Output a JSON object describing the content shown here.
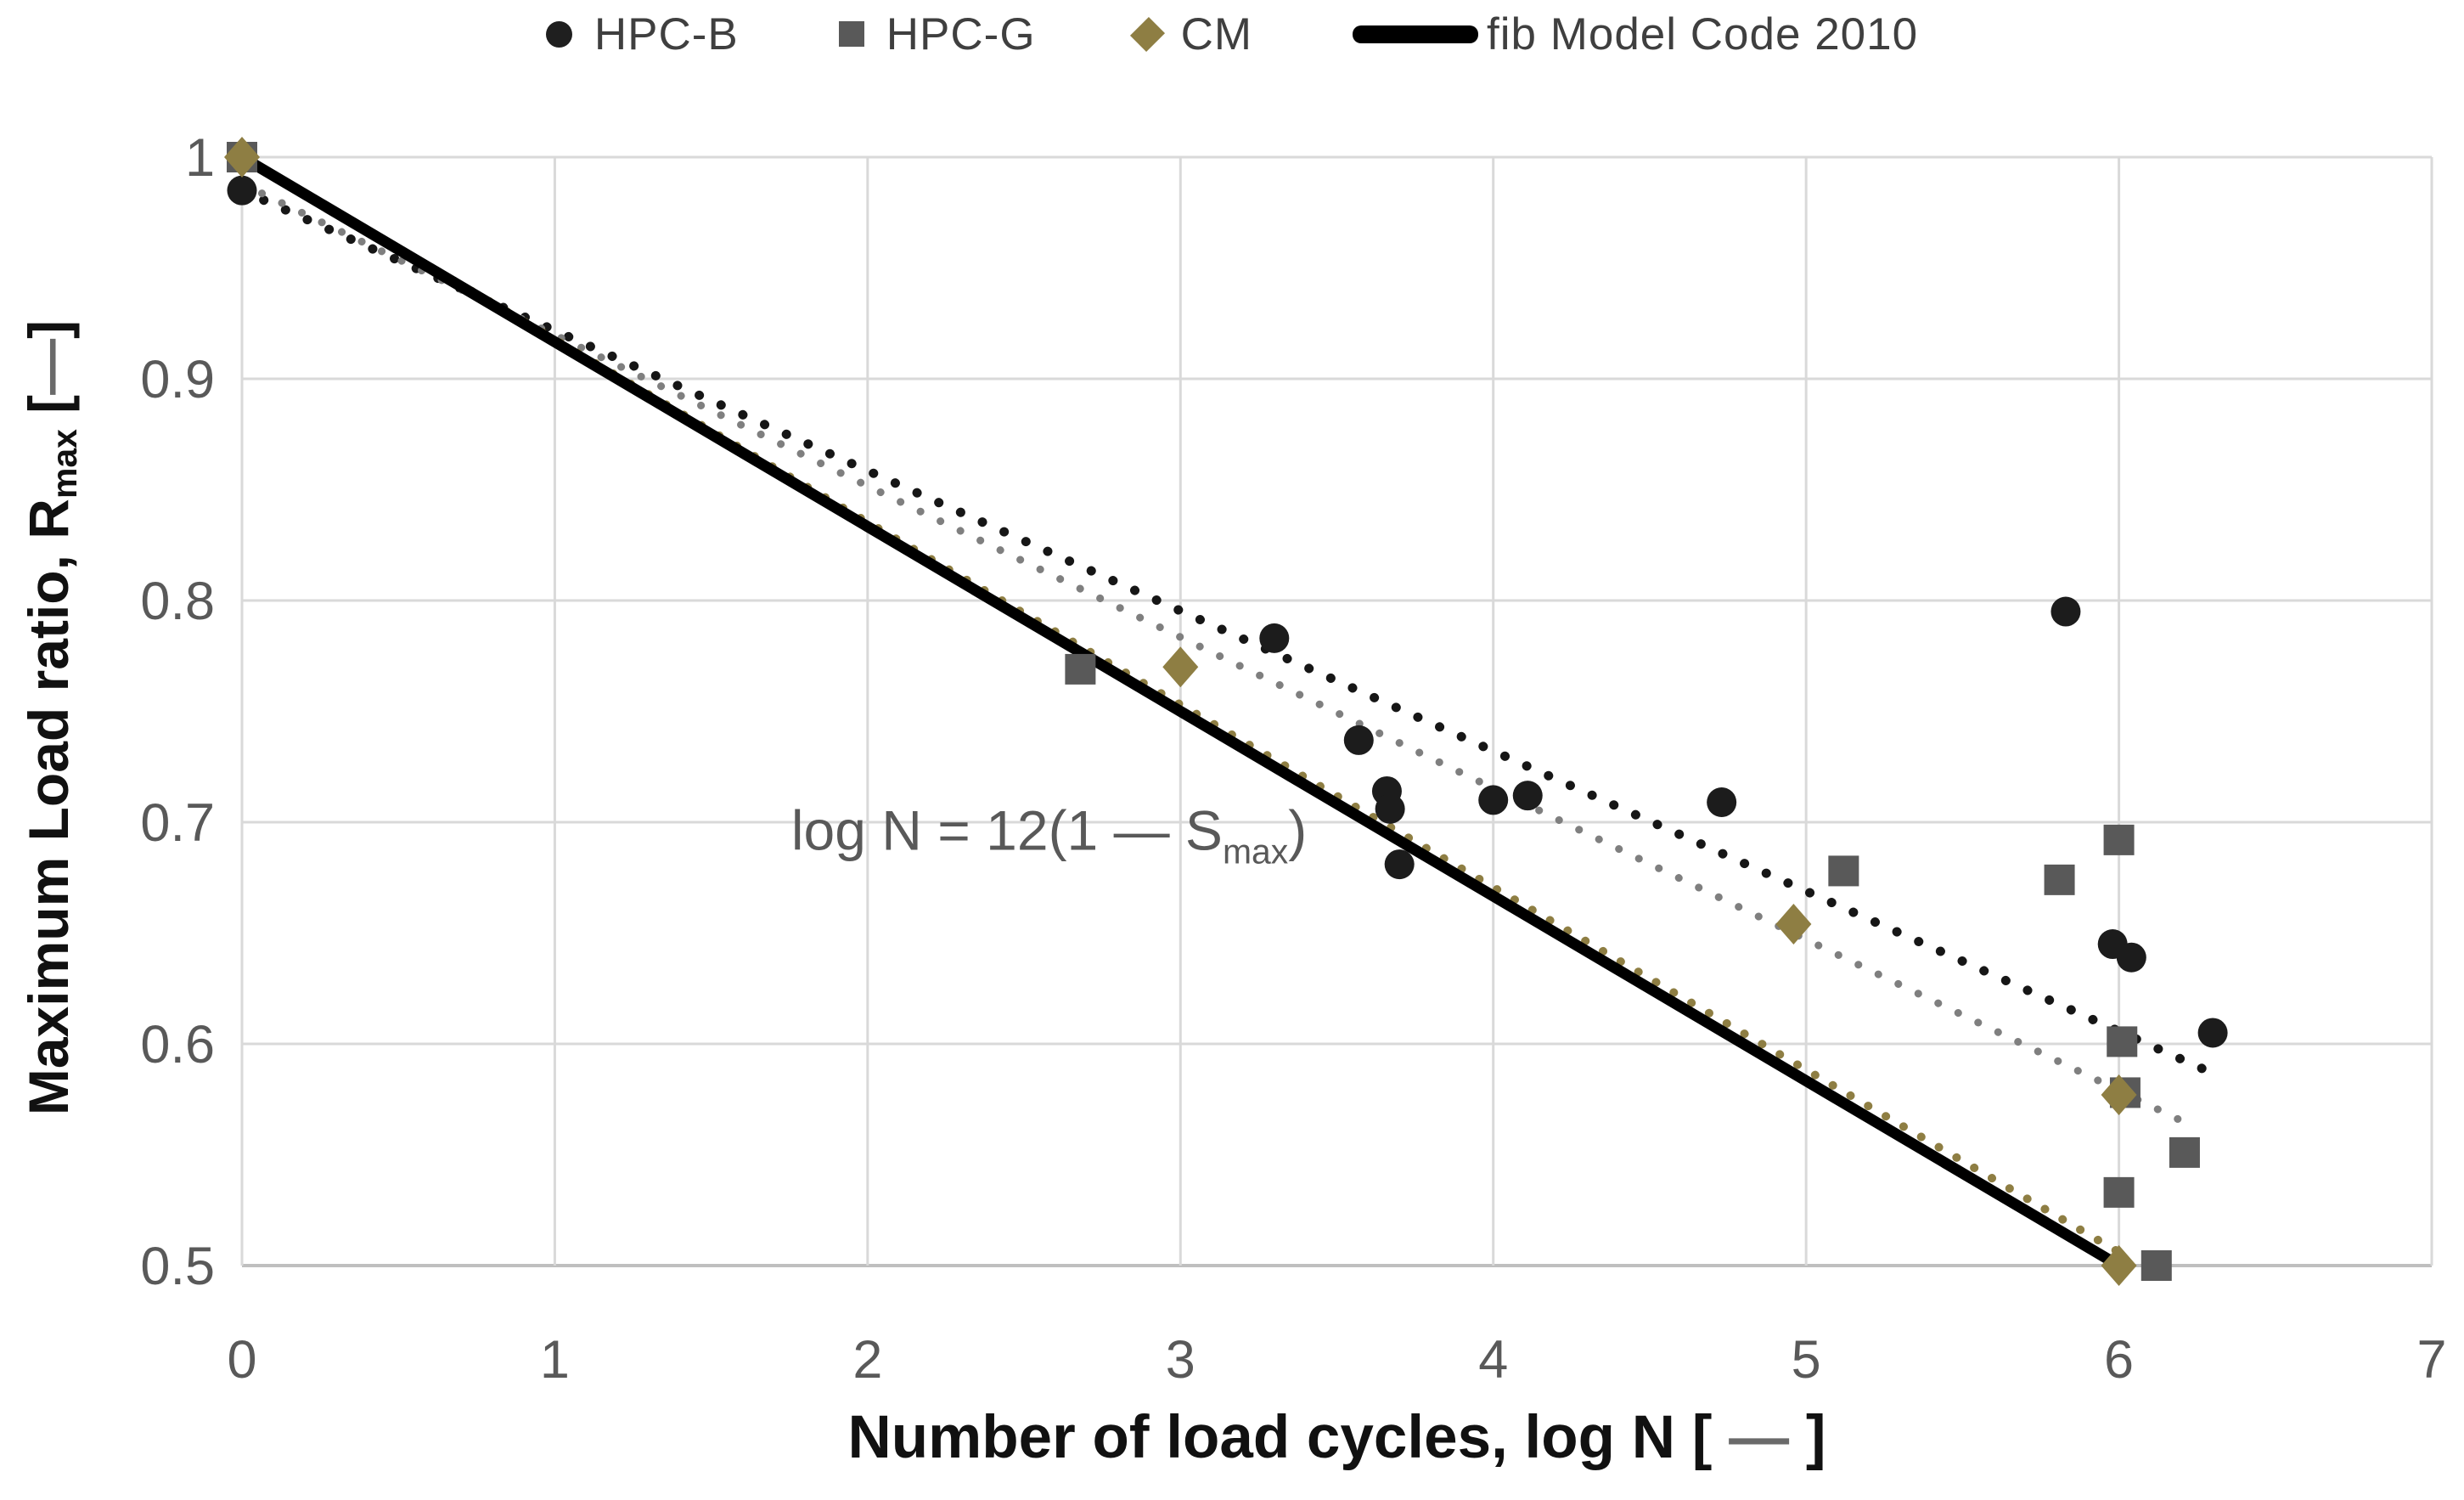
{
  "legend": {
    "position": "top-center",
    "items": [
      {
        "label": "HPC-B",
        "marker": "circle",
        "color": "#1f1f1f"
      },
      {
        "label": "HPC-G",
        "marker": "square",
        "color": "#595959"
      },
      {
        "label": "CM",
        "marker": "diamond",
        "color": "#8e7e43"
      },
      {
        "label": "fib Model Code 2010",
        "marker": "line",
        "color": "#000000"
      }
    ]
  },
  "x_axis_title": {
    "pre": "Number of load cycles, log N [ ",
    "dash": "—",
    "post": " ]"
  },
  "y_axis_title": {
    "pre": "Maximum Load ratio, R",
    "sub": "max",
    "mid": " [",
    "dash": "—",
    "post": "]"
  },
  "chart_data": {
    "type": "scatter",
    "title": "",
    "xlabel": "Number of load cycles, log N [—]",
    "ylabel": "Maximum Load ratio, Rmax [—]",
    "xlim": [
      0,
      7
    ],
    "ylim": [
      0.5,
      1.0
    ],
    "x_ticks": [
      0,
      1,
      2,
      3,
      4,
      5,
      6,
      7
    ],
    "y_ticks": [
      0.5,
      0.6,
      0.7,
      0.8,
      0.9,
      1
    ],
    "grid": true,
    "gridline_color": "#d9d9d9",
    "axis_line_color": "#bfbfbf",
    "tick_label_color": "#595959",
    "legend_position": "top",
    "series": [
      {
        "name": "HPC-G",
        "marker": "square",
        "color": "#595959",
        "points": [
          [
            0,
            1.0
          ],
          [
            2.68,
            0.769
          ],
          [
            5.12,
            0.678
          ],
          [
            5.81,
            0.674
          ],
          [
            6.0,
            0.692
          ],
          [
            6.01,
            0.601
          ],
          [
            6.02,
            0.578
          ],
          [
            6.0,
            0.533
          ],
          [
            6.12,
            0.5
          ],
          [
            6.21,
            0.551
          ]
        ]
      },
      {
        "name": "HPC-B",
        "marker": "circle",
        "color": "#1c1c1c",
        "points": [
          [
            0,
            0.985
          ],
          [
            3.3,
            0.783
          ],
          [
            3.57,
            0.737
          ],
          [
            3.66,
            0.714
          ],
          [
            3.67,
            0.706
          ],
          [
            3.7,
            0.681
          ],
          [
            4.0,
            0.71
          ],
          [
            4.11,
            0.712
          ],
          [
            4.73,
            0.709
          ],
          [
            5.83,
            0.795
          ],
          [
            5.98,
            0.645
          ],
          [
            6.04,
            0.639
          ],
          [
            6.3,
            0.605
          ]
        ]
      },
      {
        "name": "CM",
        "marker": "diamond",
        "color": "#8e7e43",
        "points": [
          [
            0,
            1.0
          ],
          [
            3.0,
            0.77
          ],
          [
            4.96,
            0.654
          ],
          [
            6.0,
            0.577
          ],
          [
            6.0,
            0.5
          ]
        ]
      }
    ],
    "trendlines": [
      {
        "name": "HPC-B trend",
        "style": "dotted",
        "color": "#161616",
        "from": [
          0,
          0.985
        ],
        "to": [
          6.28,
          0.588
        ],
        "width": 11,
        "gap": 28
      },
      {
        "name": "HPC-G trend",
        "style": "dotted",
        "color": "#7f7f7f",
        "from": [
          0,
          0.988
        ],
        "to": [
          6.19,
          0.566
        ],
        "width": 9,
        "gap": 26
      },
      {
        "name": "CM trend",
        "style": "dotted",
        "color": "#8e7e43",
        "from": [
          0,
          1.0
        ],
        "to": [
          6.0,
          0.506
        ],
        "width": 10,
        "gap": 24
      },
      {
        "name": "fib Model Code 2010",
        "style": "solid",
        "color": "#000000",
        "from": [
          0,
          1.0
        ],
        "to": [
          6,
          0.5
        ],
        "width": 13,
        "gap": 0
      }
    ],
    "annotation": {
      "pre": "log N = 12(1 — S",
      "sub": "max",
      "post": ")",
      "x": 2.58,
      "y": 0.696,
      "color": "#595959",
      "font_size": 66
    }
  }
}
